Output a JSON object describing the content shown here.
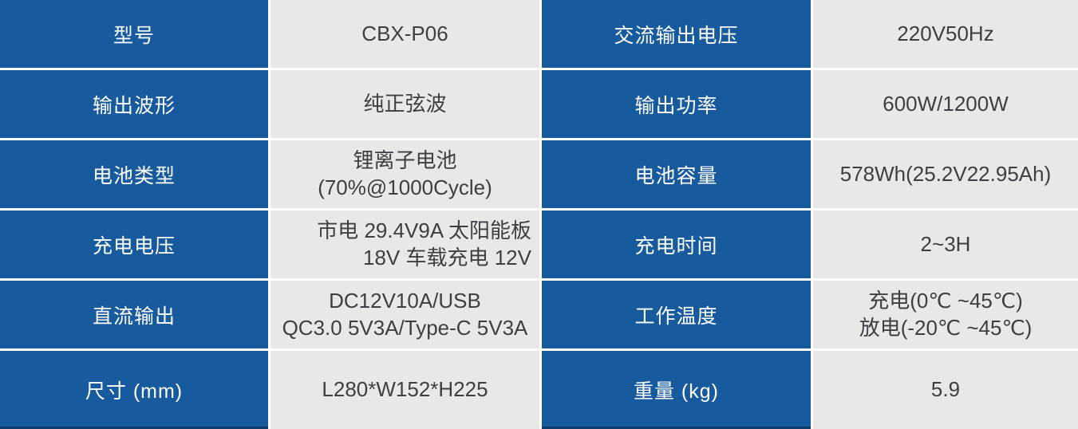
{
  "spec_table": {
    "colors": {
      "label_background": "#175a9d",
      "value_background": "#e9e8e6",
      "label_text": "#ffffff",
      "value_text": "#3d3f42",
      "separator": "#ffffff",
      "bottom_edge": "#0f3e6d"
    },
    "rows": [
      {
        "cells": [
          {
            "text": "型号"
          },
          {
            "text": "CBX-P06"
          },
          {
            "text": "交流输出电压"
          },
          {
            "text": "220V50Hz"
          }
        ]
      },
      {
        "cells": [
          {
            "text": "输出波形"
          },
          {
            "text": "纯正弦波"
          },
          {
            "text": "输出功率"
          },
          {
            "text": "600W/1200W"
          }
        ]
      },
      {
        "cells": [
          {
            "text": "电池类型"
          },
          {
            "text": "锂离子电池\n(70%@1000Cycle)"
          },
          {
            "text": "电池容量"
          },
          {
            "text": "578Wh(25.2V22.95Ah)"
          }
        ]
      },
      {
        "cells": [
          {
            "text": "充电电压"
          },
          {
            "text": "市电 29.4V9A 太阳能板\n18V 车载充电 12V"
          },
          {
            "text": "充电时间"
          },
          {
            "text": "2~3H"
          }
        ]
      },
      {
        "cells": [
          {
            "text": "直流输出"
          },
          {
            "text": "DC12V10A/USB\nQC3.0 5V3A/Type-C 5V3A"
          },
          {
            "text": "工作温度"
          },
          {
            "text": "充电(0℃ ~45℃)\n放电(-20℃ ~45℃)"
          }
        ]
      },
      {
        "cells": [
          {
            "text": "尺寸 (mm)"
          },
          {
            "text": "L280*W152*H225"
          },
          {
            "text": "重量 (kg)"
          },
          {
            "text": "5.9"
          }
        ]
      }
    ]
  }
}
